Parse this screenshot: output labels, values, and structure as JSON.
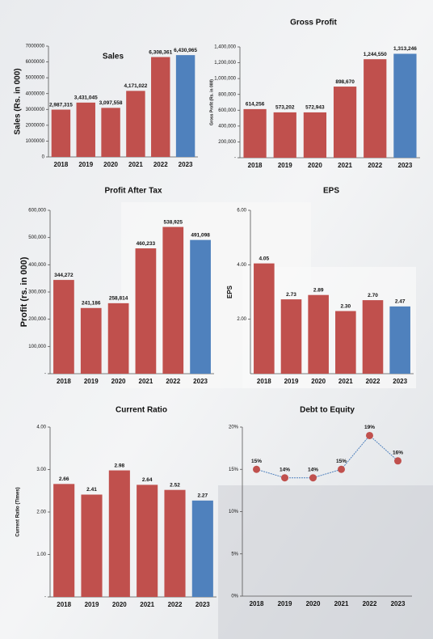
{
  "chart_data": [
    {
      "type": "bar",
      "title": "Sales",
      "y_label": "Sales (Rs. in 000)",
      "categories": [
        "2018",
        "2019",
        "2020",
        "2021",
        "2022",
        "2023"
      ],
      "values": [
        2987315,
        3431045,
        3097558,
        4171022,
        6308361,
        6430965
      ],
      "value_labels": [
        "2,987,315",
        "3,431,045",
        "3,097,558",
        "4,171,022",
        "6,308,361",
        "6,430,965"
      ],
      "colors": [
        "#c0504d",
        "#c0504d",
        "#c0504d",
        "#c0504d",
        "#c0504d",
        "#4f81bd"
      ],
      "ylim": [
        0,
        7000000
      ],
      "yticks": [
        0,
        1000000,
        2000000,
        3000000,
        4000000,
        5000000,
        6000000,
        7000000
      ]
    },
    {
      "type": "bar",
      "title": "Gross Profit",
      "y_label": "Gross Profit (Rs. in 000)",
      "categories": [
        "2018",
        "2019",
        "2020",
        "2021",
        "2022",
        "2023"
      ],
      "values": [
        614256,
        573202,
        572943,
        898670,
        1244550,
        1313246
      ],
      "value_labels": [
        "614,256",
        "573,202",
        "572,943",
        "898,670",
        "1,244,550",
        "1,313,246"
      ],
      "colors": [
        "#c0504d",
        "#c0504d",
        "#c0504d",
        "#c0504d",
        "#c0504d",
        "#4f81bd"
      ],
      "ylim": [
        0,
        1400000
      ],
      "yticks": [
        {
          "value": 0,
          "label": "-"
        },
        {
          "value": 200000,
          "label": "200,000"
        },
        {
          "value": 400000,
          "label": "400,000"
        },
        {
          "value": 600000,
          "label": "600,000"
        },
        {
          "value": 800000,
          "label": "800,000"
        },
        {
          "value": 1000000,
          "label": "1,000,000"
        },
        {
          "value": 1200000,
          "label": "1,200,000"
        },
        {
          "value": 1400000,
          "label": "1,400,000"
        }
      ]
    },
    {
      "type": "bar",
      "title": "Profit After Tax",
      "y_label": "Profit (rs. in 000)",
      "categories": [
        "2018",
        "2019",
        "2020",
        "2021",
        "2022",
        "2023"
      ],
      "values": [
        344272,
        241186,
        258814,
        460233,
        538925,
        491098
      ],
      "value_labels": [
        "344,272",
        "241,186",
        "258,814",
        "460,233",
        "538,925",
        "491,098"
      ],
      "colors": [
        "#c0504d",
        "#c0504d",
        "#c0504d",
        "#c0504d",
        "#c0504d",
        "#4f81bd"
      ],
      "ylim": [
        0,
        600000
      ],
      "yticks": [
        {
          "value": 0,
          "label": "-"
        },
        {
          "value": 100000,
          "label": "100,000"
        },
        {
          "value": 200000,
          "label": "200,000"
        },
        {
          "value": 300000,
          "label": "300,000"
        },
        {
          "value": 400000,
          "label": "400,000"
        },
        {
          "value": 500000,
          "label": "500,000"
        },
        {
          "value": 600000,
          "label": "600,000"
        }
      ]
    },
    {
      "type": "bar",
      "title": "EPS",
      "y_label": "EPS",
      "categories": [
        "2018",
        "2019",
        "2020",
        "2021",
        "2022",
        "2023"
      ],
      "values": [
        4.05,
        2.73,
        2.89,
        2.3,
        2.7,
        2.47
      ],
      "value_labels": [
        "4.05",
        "2.73",
        "2.89",
        "2.30",
        "2.70",
        "2.47"
      ],
      "colors": [
        "#c0504d",
        "#c0504d",
        "#c0504d",
        "#c0504d",
        "#c0504d",
        "#4f81bd"
      ],
      "ylim": [
        0,
        6
      ],
      "yticks": [
        {
          "value": 2,
          "label": "2.00"
        },
        {
          "value": 4,
          "label": "4.00"
        },
        {
          "value": 6,
          "label": "6.00"
        }
      ]
    },
    {
      "type": "bar",
      "title": "Current  Ratio",
      "y_label": "Current Ratio (Times)",
      "categories": [
        "2018",
        "2019",
        "2020",
        "2021",
        "2022",
        "2023"
      ],
      "values": [
        2.66,
        2.41,
        2.98,
        2.64,
        2.52,
        2.27
      ],
      "value_labels": [
        "2.66",
        "2.41",
        "2.98",
        "2.64",
        "2.52",
        "2.27"
      ],
      "colors": [
        "#c0504d",
        "#c0504d",
        "#c0504d",
        "#c0504d",
        "#c0504d",
        "#4f81bd"
      ],
      "ylim": [
        0,
        4
      ],
      "yticks": [
        {
          "value": 0,
          "label": "-"
        },
        {
          "value": 1,
          "label": "1.00"
        },
        {
          "value": 2,
          "label": "2.00"
        },
        {
          "value": 3,
          "label": "3.00"
        },
        {
          "value": 4,
          "label": "4.00"
        }
      ]
    },
    {
      "type": "line",
      "title": "Debt to Equity",
      "categories": [
        "2018",
        "2019",
        "2020",
        "2021",
        "2022",
        "2023"
      ],
      "values": [
        15,
        14,
        14,
        15,
        19,
        16
      ],
      "value_labels": [
        "15%",
        "14%",
        "14%",
        "15%",
        "19%",
        "16%"
      ],
      "color": "#4f81bd",
      "marker_color": "#c0504d",
      "ylim": [
        0,
        20
      ],
      "yticks": [
        {
          "value": 0,
          "label": "0%"
        },
        {
          "value": 5,
          "label": "5%"
        },
        {
          "value": 10,
          "label": "10%"
        },
        {
          "value": 15,
          "label": "15%"
        },
        {
          "value": 20,
          "label": "20%"
        }
      ]
    }
  ]
}
